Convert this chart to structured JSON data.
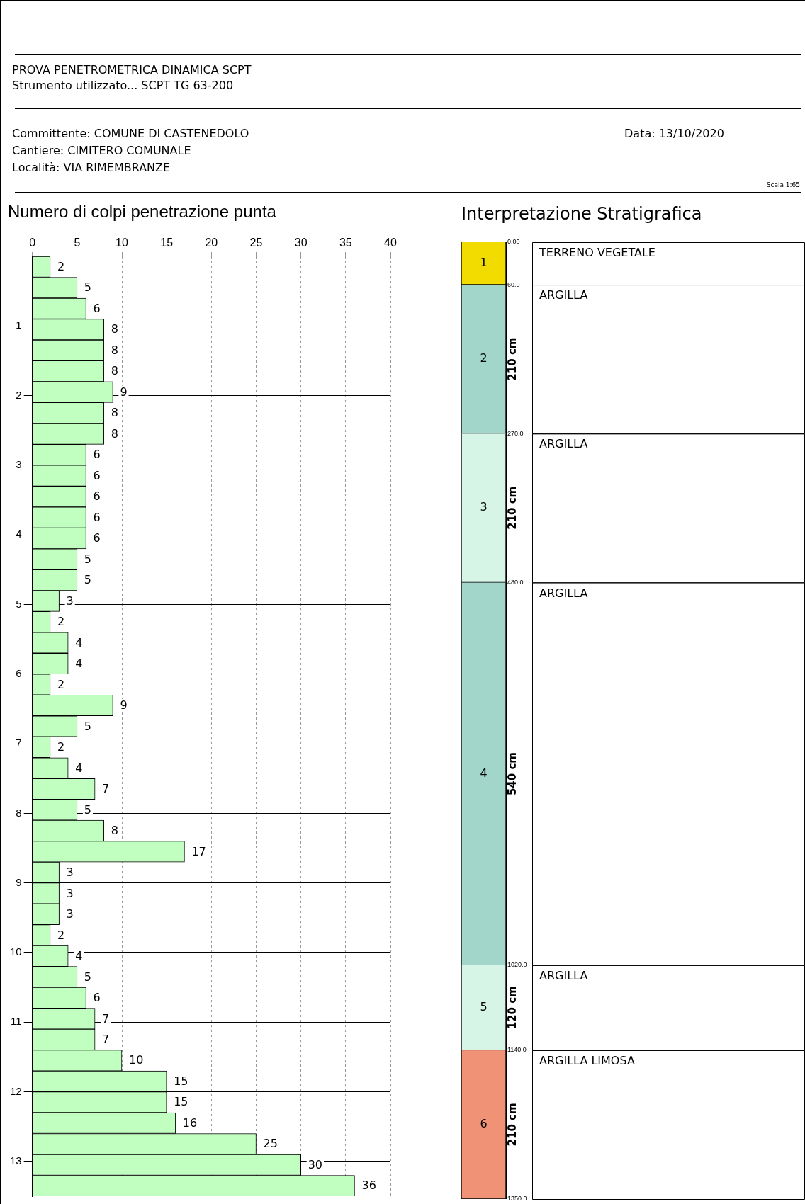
{
  "chart_data": [
    {
      "type": "other",
      "title": "PROVA PENETROMETRICA DINAMICA SCPT",
      "subtitle": "Strumento utilizzato... SCPT  TG 63-200",
      "annotations": [
        "Committente: COMUNE DI CASTENEDOLO",
        "Cantiere: CIMITERO COMUNALE",
        "Località: VIA RIMEMBRANZE",
        "Data: 13/10/2020",
        "Scala 1:65"
      ]
    },
    {
      "type": "histogram",
      "title": "Numero di colpi penetrazione punta",
      "orientation": "horizontal",
      "color": "#c0ffc0",
      "bins": [
        0,
        0.3,
        0.6,
        0.9,
        1.2,
        1.5,
        1.8,
        2.1,
        2.4,
        2.7,
        3,
        3.3,
        3.6,
        3.9,
        4.2,
        4.5,
        4.8,
        5.1,
        5.4,
        5.7,
        6,
        6.3,
        6.6,
        6.9,
        7.2,
        7.5,
        7.8,
        8.1,
        8.4,
        8.7,
        9,
        9.3,
        9.6,
        9.9,
        10.2,
        10.5,
        10.8,
        11.1,
        11.4,
        11.7,
        12,
        12.3,
        12.6,
        12.9,
        13.2,
        13.5
      ],
      "values": [
        2,
        5,
        6,
        8,
        8,
        8,
        9,
        8,
        8,
        6,
        6,
        6,
        6,
        6,
        5,
        5,
        3,
        2,
        4,
        4,
        2,
        9,
        5,
        2,
        4,
        7,
        5,
        8,
        17,
        3,
        3,
        3,
        2,
        4,
        5,
        6,
        7,
        7,
        10,
        15,
        15,
        16,
        25,
        30,
        36
      ],
      "xlim": [
        0,
        40
      ],
      "xticks": [
        0,
        5,
        10,
        15,
        20,
        25,
        30,
        35,
        40
      ],
      "ylim": [
        13.5,
        0
      ],
      "yticks": [
        1,
        2,
        3,
        4,
        5,
        6,
        7,
        8,
        9,
        10,
        11,
        12,
        13
      ],
      "grid": true,
      "data_labels": true
    },
    {
      "type": "bar",
      "title": "Interpretazione Stratigrafica",
      "stacked": true,
      "categories": [
        null
      ],
      "series": [
        {
          "name": "TERRENO VEGETALE",
          "color": "#f2dc00",
          "values": [
            60
          ],
          "value_labels": [
            null
          ]
        },
        {
          "name": "ARGILLA",
          "color": "#a2d6cb",
          "values": [
            210
          ],
          "value_labels": [
            "210 cm"
          ]
        },
        {
          "name": "ARGILLA",
          "color": "#d6f5e6",
          "values": [
            210
          ],
          "value_labels": [
            "210 cm"
          ]
        },
        {
          "name": "ARGILLA",
          "color": "#a2d6cb",
          "values": [
            540
          ],
          "value_labels": [
            "540 cm"
          ]
        },
        {
          "name": "ARGILLA",
          "color": "#d6f5e6",
          "values": [
            120
          ],
          "value_labels": [
            "120 cm"
          ]
        },
        {
          "name": "ARGILLA LIMOSA",
          "color": "#ef9276",
          "values": [
            210
          ],
          "value_labels": [
            "210 cm"
          ]
        }
      ],
      "annotations": [
        "1",
        "2",
        "3",
        "4",
        "5",
        "6"
      ],
      "ylim": [
        1350,
        0
      ],
      "yticks": [
        {
          "value": 0,
          "label": "0.00"
        },
        {
          "value": 60,
          "label": "60.0"
        },
        {
          "value": 270,
          "label": "270.0"
        },
        {
          "value": 480,
          "label": "480.0"
        },
        {
          "value": 1020,
          "label": "1020.0"
        },
        {
          "value": 1140,
          "label": "1140.0"
        },
        {
          "value": 1350,
          "label": "1350.0"
        }
      ]
    }
  ]
}
